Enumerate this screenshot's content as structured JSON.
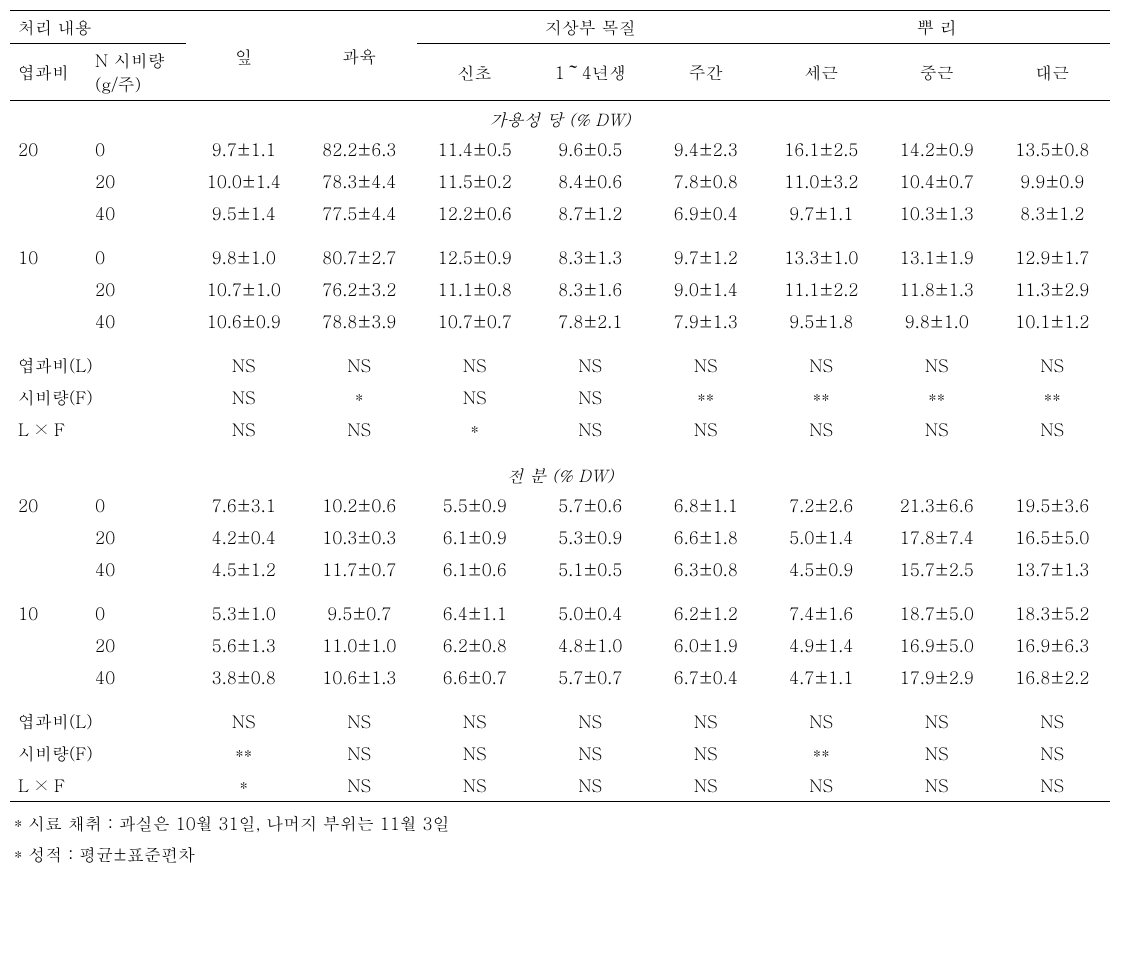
{
  "headers": {
    "treatment": "처리 내용",
    "leaf_ratio": "엽과비",
    "n_rate": "N 시비량",
    "n_rate_unit": "(g/주)",
    "leaf": "잎",
    "fruit": "과육",
    "wood_group": "지상부 목질",
    "shoot": "신초",
    "branch": "1～4년생",
    "trunk": "주간",
    "root_group": "뿌  리",
    "fine_root": "세근",
    "mid_root": "중근",
    "large_root": "대근"
  },
  "sections": [
    {
      "title": "가용성 당 (% DW)",
      "groups": [
        {
          "y": "20",
          "rows": [
            {
              "n": "0",
              "d": [
                "9.7±1.1",
                "82.2±6.3",
                "11.4±0.5",
                "9.6±0.5",
                "9.4±2.3",
                "16.1±2.5",
                "14.2±0.9",
                "13.5±0.8"
              ]
            },
            {
              "n": "20",
              "d": [
                "10.0±1.4",
                "78.3±4.4",
                "11.5±0.2",
                "8.4±0.6",
                "7.8±0.8",
                "11.0±3.2",
                "10.4±0.7",
                "9.9±0.9"
              ]
            },
            {
              "n": "40",
              "d": [
                "9.5±1.4",
                "77.5±4.4",
                "12.2±0.6",
                "8.7±1.2",
                "6.9±0.4",
                "9.7±1.1",
                "10.3±1.3",
                "8.3±1.2"
              ]
            }
          ]
        },
        {
          "y": "10",
          "rows": [
            {
              "n": "0",
              "d": [
                "9.8±1.0",
                "80.7±2.7",
                "12.5±0.9",
                "8.3±1.3",
                "9.7±1.2",
                "13.3±1.0",
                "13.1±1.9",
                "12.9±1.7"
              ]
            },
            {
              "n": "20",
              "d": [
                "10.7±1.0",
                "76.2±3.2",
                "11.1±0.8",
                "8.3±1.6",
                "9.0±1.4",
                "11.1±2.2",
                "11.8±1.3",
                "11.3±2.9"
              ]
            },
            {
              "n": "40",
              "d": [
                "10.6±0.9",
                "78.8±3.9",
                "10.7±0.7",
                "7.8±2.1",
                "7.9±1.3",
                "9.5±1.8",
                "9.8±1.0",
                "10.1±1.2"
              ]
            }
          ]
        }
      ],
      "stats": [
        {
          "label": "엽과비(L)",
          "d": [
            "NS",
            "NS",
            "NS",
            "NS",
            "NS",
            "NS",
            "NS",
            "NS"
          ]
        },
        {
          "label": "시비량(F)",
          "d": [
            "NS",
            "*",
            "NS",
            "NS",
            "**",
            "**",
            "**",
            "**"
          ]
        },
        {
          "label": "L × F",
          "d": [
            "NS",
            "NS",
            "*",
            "NS",
            "NS",
            "NS",
            "NS",
            "NS"
          ]
        }
      ]
    },
    {
      "title": "전 분 (% DW)",
      "groups": [
        {
          "y": "20",
          "rows": [
            {
              "n": "0",
              "d": [
                "7.6±3.1",
                "10.2±0.6",
                "5.5±0.9",
                "5.7±0.6",
                "6.8±1.1",
                "7.2±2.6",
                "21.3±6.6",
                "19.5±3.6"
              ]
            },
            {
              "n": "20",
              "d": [
                "4.2±0.4",
                "10.3±0.3",
                "6.1±0.9",
                "5.3±0.9",
                "6.6±1.8",
                "5.0±1.4",
                "17.8±7.4",
                "16.5±5.0"
              ]
            },
            {
              "n": "40",
              "d": [
                "4.5±1.2",
                "11.7±0.7",
                "6.1±0.6",
                "5.1±0.5",
                "6.3±0.8",
                "4.5±0.9",
                "15.7±2.5",
                "13.7±1.3"
              ]
            }
          ]
        },
        {
          "y": "10",
          "rows": [
            {
              "n": "0",
              "d": [
                "5.3±1.0",
                "9.5±0.7",
                "6.4±1.1",
                "5.0±0.4",
                "6.2±1.2",
                "7.4±1.6",
                "18.7±5.0",
                "18.3±5.2"
              ]
            },
            {
              "n": "20",
              "d": [
                "5.6±1.3",
                "11.0±1.0",
                "6.2±0.8",
                "4.8±1.0",
                "6.0±1.9",
                "4.9±1.4",
                "16.9±5.0",
                "16.9±6.3"
              ]
            },
            {
              "n": "40",
              "d": [
                "3.8±0.8",
                "10.6±1.3",
                "6.6±0.7",
                "5.7±0.7",
                "6.7±0.4",
                "4.7±1.1",
                "17.9±2.9",
                "16.8±2.2"
              ]
            }
          ]
        }
      ],
      "stats": [
        {
          "label": "엽과비(L)",
          "d": [
            "NS",
            "NS",
            "NS",
            "NS",
            "NS",
            "NS",
            "NS",
            "NS"
          ]
        },
        {
          "label": "시비량(F)",
          "d": [
            "**",
            "NS",
            "NS",
            "NS",
            "NS",
            "**",
            "NS",
            "NS"
          ]
        },
        {
          "label": "L × F",
          "d": [
            "*",
            "NS",
            "NS",
            "NS",
            "NS",
            "NS",
            "NS",
            "NS"
          ]
        }
      ]
    }
  ],
  "notes": {
    "line1": "* 시료 채취 : 과실은 10월 31일, 나머지 부위는 11월 3일",
    "line2": "* 성적 : 평균±표준편차"
  }
}
